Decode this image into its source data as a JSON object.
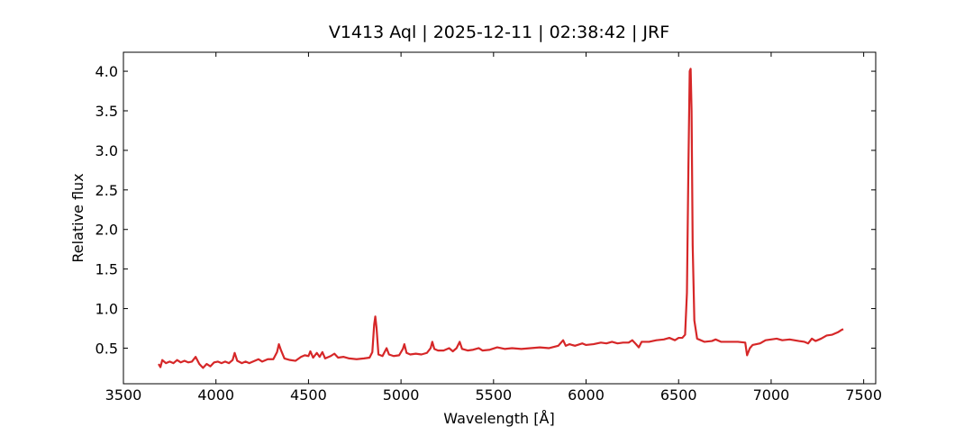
{
  "chart_data": {
    "type": "line",
    "title": "V1413 Aql | 2025-12-11 | 02:38:42 | JRF",
    "xlabel": "Wavelength [Å]",
    "ylabel": "Relative flux",
    "color": "#d62728",
    "xlim": [
      3500,
      7565
    ],
    "ylim": [
      0.05,
      4.24
    ],
    "xticks": [
      3500,
      4000,
      4500,
      5000,
      5500,
      6000,
      6500,
      7000,
      7500
    ],
    "yticks": [
      0.5,
      {
        "value": 1,
        "label": "1.0"
      },
      1.5,
      {
        "value": 2,
        "label": "2.0"
      },
      2.5,
      {
        "value": 3,
        "label": "3.0"
      },
      3.5,
      {
        "value": 4,
        "label": "4.0"
      }
    ],
    "x": [
      3690,
      3700,
      3710,
      3730,
      3750,
      3770,
      3790,
      3810,
      3830,
      3850,
      3870,
      3890,
      3910,
      3930,
      3950,
      3970,
      3990,
      4010,
      4030,
      4050,
      4070,
      4090,
      4101,
      4115,
      4140,
      4160,
      4180,
      4200,
      4230,
      4250,
      4280,
      4310,
      4330,
      4340,
      4352,
      4370,
      4400,
      4430,
      4460,
      4480,
      4500,
      4510,
      4525,
      4545,
      4560,
      4575,
      4590,
      4620,
      4640,
      4660,
      4690,
      4720,
      4760,
      4800,
      4830,
      4845,
      4855,
      4861,
      4868,
      4878,
      4900,
      4922,
      4935,
      4960,
      4990,
      5010,
      5018,
      5030,
      5050,
      5080,
      5110,
      5140,
      5160,
      5169,
      5180,
      5200,
      5230,
      5260,
      5280,
      5300,
      5317,
      5330,
      5360,
      5390,
      5420,
      5440,
      5480,
      5520,
      5560,
      5600,
      5650,
      5700,
      5750,
      5800,
      5850,
      5876,
      5890,
      5910,
      5940,
      5980,
      6000,
      6040,
      6080,
      6110,
      6140,
      6170,
      6200,
      6230,
      6250,
      6270,
      6285,
      6300,
      6340,
      6380,
      6420,
      6450,
      6480,
      6500,
      6520,
      6535,
      6545,
      6553,
      6560,
      6565,
      6570,
      6576,
      6585,
      6600,
      6640,
      6680,
      6700,
      6730,
      6780,
      6820,
      6860,
      6870,
      6885,
      6900,
      6940,
      6970,
      7000,
      7030,
      7060,
      7100,
      7150,
      7180,
      7200,
      7220,
      7240,
      7270,
      7300,
      7330,
      7360,
      7380,
      7390
    ],
    "values": [
      0.3,
      0.26,
      0.35,
      0.31,
      0.33,
      0.31,
      0.35,
      0.32,
      0.34,
      0.32,
      0.33,
      0.39,
      0.3,
      0.25,
      0.3,
      0.27,
      0.32,
      0.33,
      0.31,
      0.33,
      0.31,
      0.35,
      0.44,
      0.34,
      0.31,
      0.33,
      0.31,
      0.33,
      0.36,
      0.33,
      0.36,
      0.36,
      0.45,
      0.55,
      0.47,
      0.37,
      0.35,
      0.34,
      0.39,
      0.41,
      0.4,
      0.46,
      0.38,
      0.44,
      0.39,
      0.45,
      0.37,
      0.4,
      0.43,
      0.38,
      0.39,
      0.37,
      0.36,
      0.37,
      0.38,
      0.45,
      0.8,
      0.9,
      0.75,
      0.42,
      0.4,
      0.5,
      0.42,
      0.4,
      0.41,
      0.49,
      0.55,
      0.44,
      0.42,
      0.43,
      0.42,
      0.44,
      0.5,
      0.58,
      0.49,
      0.47,
      0.47,
      0.5,
      0.46,
      0.5,
      0.58,
      0.49,
      0.47,
      0.48,
      0.5,
      0.47,
      0.48,
      0.51,
      0.49,
      0.5,
      0.49,
      0.5,
      0.51,
      0.5,
      0.53,
      0.6,
      0.53,
      0.55,
      0.53,
      0.56,
      0.54,
      0.55,
      0.57,
      0.56,
      0.58,
      0.56,
      0.57,
      0.57,
      0.6,
      0.55,
      0.51,
      0.58,
      0.58,
      0.6,
      0.61,
      0.63,
      0.6,
      0.63,
      0.63,
      0.67,
      1.2,
      2.8,
      4.0,
      4.03,
      3.5,
      1.8,
      0.85,
      0.62,
      0.58,
      0.59,
      0.61,
      0.58,
      0.58,
      0.58,
      0.57,
      0.41,
      0.5,
      0.54,
      0.56,
      0.6,
      0.61,
      0.62,
      0.6,
      0.61,
      0.59,
      0.58,
      0.56,
      0.62,
      0.59,
      0.62,
      0.66,
      0.67,
      0.7,
      0.73,
      0.74
    ]
  }
}
